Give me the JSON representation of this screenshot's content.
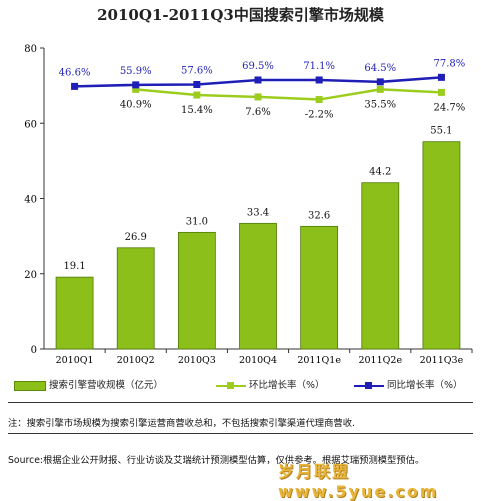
{
  "chart_data": {
    "type": "bar",
    "title": "2010Q1-2011Q3中国搜索引擎市场规模",
    "categories": [
      "2010Q1",
      "2010Q2",
      "2010Q3",
      "2010Q4",
      "2011Q1e",
      "2011Q2e",
      "2011Q3e"
    ],
    "ylim": [
      0,
      80
    ],
    "yticks": [
      0,
      20,
      40,
      60,
      80
    ],
    "grid": false,
    "legend_position": "bottom",
    "series": [
      {
        "name": "搜索引擎营收规模（亿元）",
        "kind": "bar",
        "color": "#8cbf1a",
        "values": [
          19.1,
          26.9,
          31.0,
          33.4,
          32.6,
          44.2,
          55.1
        ],
        "labels": [
          "19.1",
          "26.9",
          "31.0",
          "33.4",
          "32.6",
          "44.2",
          "55.1"
        ]
      },
      {
        "name": "环比增长率（%）",
        "kind": "line",
        "color": "#9ccd1e",
        "plot_y": [
          null,
          69,
          67.5,
          67,
          66.3,
          69,
          68.2
        ],
        "values": [
          null,
          40.9,
          15.4,
          7.6,
          -2.2,
          35.5,
          24.7
        ],
        "labels": [
          "",
          "40.9%",
          "15.4%",
          "7.6%",
          "-2.2%",
          "35.5%",
          "24.7%"
        ]
      },
      {
        "name": "同比增长率（%）",
        "kind": "line",
        "color": "#1f1fb8",
        "plot_y": [
          69.8,
          70.2,
          70.3,
          71.5,
          71.5,
          71.0,
          72.2
        ],
        "values": [
          46.6,
          55.9,
          57.6,
          69.5,
          71.1,
          64.5,
          77.8
        ],
        "labels": [
          "46.6%",
          "55.9%",
          "57.6%",
          "69.5%",
          "71.1%",
          "64.5%",
          "77.8%"
        ]
      }
    ]
  },
  "notes": {
    "note_text": "注：搜索引擎市场规模为搜索引擎运营商营收总和，不包括搜索引擎渠道代理商营收.",
    "source_text": "Source:根据企业公开财报、行业访谈及艾瑞统计预测模型估算，仅供参考。根据艾瑞预测模型预估。",
    "watermark_text": "岁月联盟 www.5yue.com"
  }
}
